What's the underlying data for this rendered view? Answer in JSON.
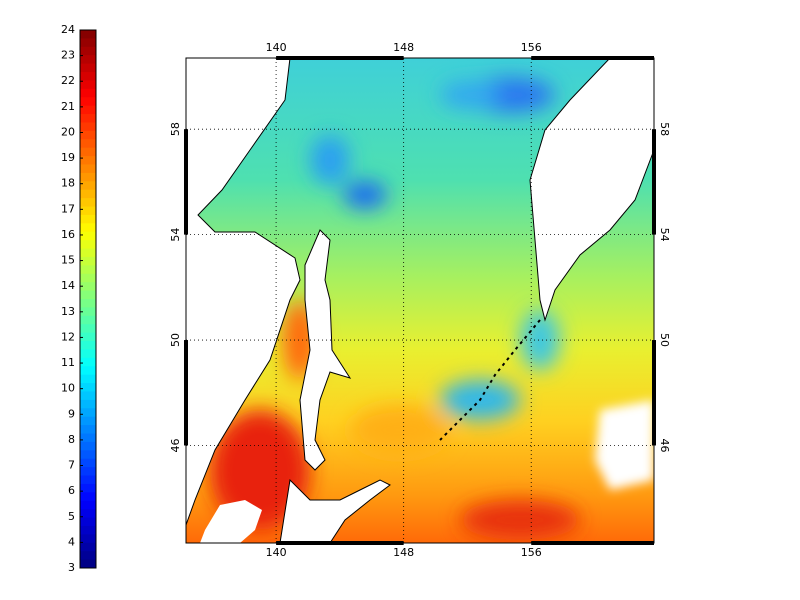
{
  "colorbar": {
    "range": [
      3,
      24
    ],
    "ticks": [
      3,
      4,
      5,
      6,
      7,
      8,
      9,
      10,
      11,
      12,
      13,
      14,
      15,
      16,
      17,
      18,
      19,
      20,
      21,
      22,
      23,
      24
    ]
  },
  "map": {
    "lon_range": [
      134.35,
      163.7
    ],
    "lat_range": [
      42.3,
      60.7
    ],
    "lon_ticks": [
      140,
      148,
      156
    ],
    "lat_ticks": [
      46,
      50,
      54,
      58
    ]
  }
}
